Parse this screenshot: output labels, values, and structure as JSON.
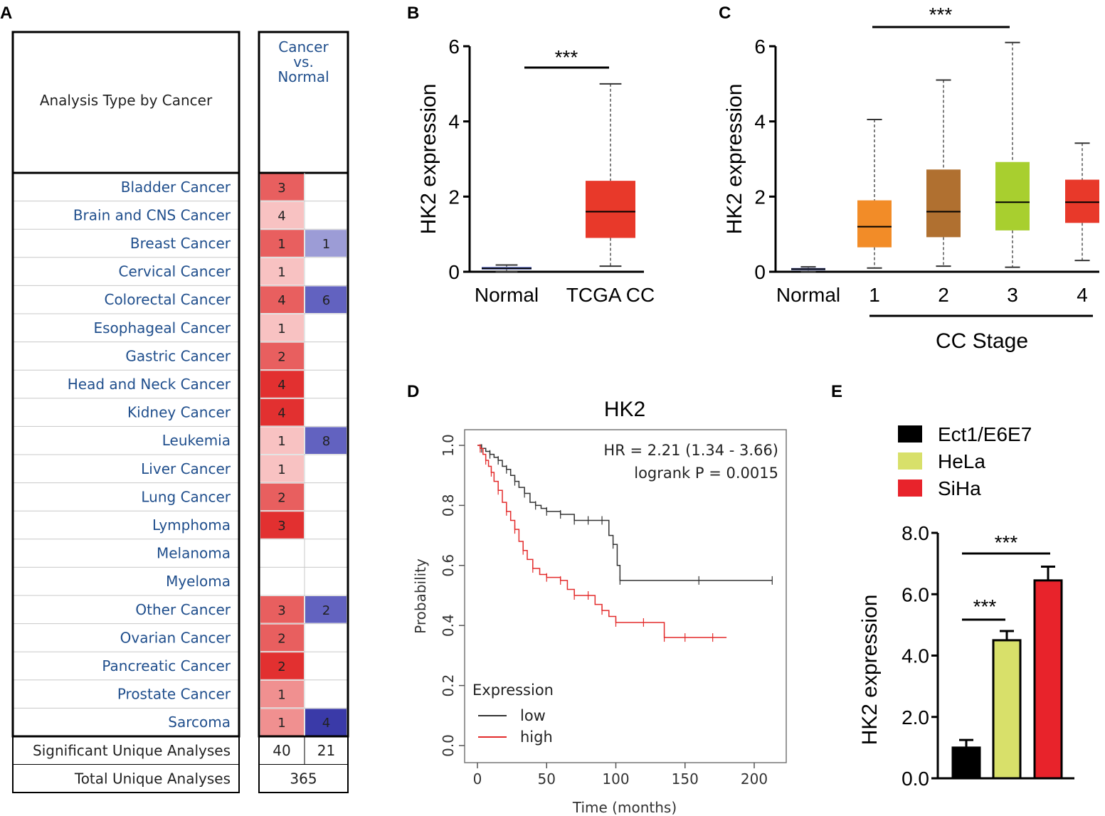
{
  "panels": {
    "A": "A",
    "B": "B",
    "C": "C",
    "D": "D",
    "E": "E"
  },
  "colors": {
    "onco_red": [
      "#f8c2c2",
      "#f09090",
      "#e85f5f",
      "#e23030"
    ],
    "onco_blue": [
      "#9c9cd6",
      "#6262c0",
      "#3a3aa8"
    ],
    "normal_box": "#6f7fd6",
    "tcga_box": "#e8392a",
    "stage_boxes": [
      "#f28c28",
      "#b07030",
      "#a8cf2f",
      "#e8392a"
    ],
    "km_low": "#333333",
    "km_high": "#e32b2b",
    "bar_colors": [
      "#000000",
      "#d8e06a",
      "#e8232b"
    ]
  },
  "chart_data": [
    {
      "type": "table",
      "panel": "A",
      "header_left": "Analysis Type by Cancer",
      "header_right_lines": [
        "Cancer",
        "vs.",
        "Normal"
      ],
      "rows": [
        {
          "name": "Bladder Cancer",
          "up": 3,
          "up_level": 2,
          "down": null,
          "down_level": 0
        },
        {
          "name": "Brain and CNS Cancer",
          "up": 4,
          "up_level": 0,
          "down": null,
          "down_level": 0
        },
        {
          "name": "Breast Cancer",
          "up": 1,
          "up_level": 2,
          "down": 1,
          "down_level": 1
        },
        {
          "name": "Cervical Cancer",
          "up": 1,
          "up_level": 0,
          "down": null,
          "down_level": 0
        },
        {
          "name": "Colorectal Cancer",
          "up": 4,
          "up_level": 2,
          "down": 6,
          "down_level": 2
        },
        {
          "name": "Esophageal Cancer",
          "up": 1,
          "up_level": 0,
          "down": null,
          "down_level": 0
        },
        {
          "name": "Gastric Cancer",
          "up": 2,
          "up_level": 2,
          "down": null,
          "down_level": 0
        },
        {
          "name": "Head and Neck Cancer",
          "up": 4,
          "up_level": 3,
          "down": null,
          "down_level": 0
        },
        {
          "name": "Kidney Cancer",
          "up": 4,
          "up_level": 3,
          "down": null,
          "down_level": 0
        },
        {
          "name": "Leukemia",
          "up": 1,
          "up_level": 0,
          "down": 8,
          "down_level": 2
        },
        {
          "name": "Liver Cancer",
          "up": 1,
          "up_level": 0,
          "down": null,
          "down_level": 0
        },
        {
          "name": "Lung Cancer",
          "up": 2,
          "up_level": 2,
          "down": null,
          "down_level": 0
        },
        {
          "name": "Lymphoma",
          "up": 3,
          "up_level": 3,
          "down": null,
          "down_level": 0
        },
        {
          "name": "Melanoma",
          "up": null,
          "up_level": 0,
          "down": null,
          "down_level": 0
        },
        {
          "name": "Myeloma",
          "up": null,
          "up_level": 0,
          "down": null,
          "down_level": 0
        },
        {
          "name": "Other Cancer",
          "up": 3,
          "up_level": 2,
          "down": 2,
          "down_level": 2
        },
        {
          "name": "Ovarian Cancer",
          "up": 2,
          "up_level": 2,
          "down": null,
          "down_level": 0
        },
        {
          "name": "Pancreatic Cancer",
          "up": 2,
          "up_level": 3,
          "down": null,
          "down_level": 0
        },
        {
          "name": "Prostate Cancer",
          "up": 1,
          "up_level": 1,
          "down": null,
          "down_level": 0
        },
        {
          "name": "Sarcoma",
          "up": 1,
          "up_level": 1,
          "down": 4,
          "down_level": 3
        }
      ],
      "significant_label": "Significant Unique Analyses",
      "significant_up": 40,
      "significant_down": 21,
      "total_label": "Total Unique Analyses",
      "total": 365
    },
    {
      "type": "box",
      "panel": "B",
      "ylabel": "HK2 expression",
      "ylim": [
        0,
        6
      ],
      "yticks": [
        "0",
        "2",
        "4",
        "6"
      ],
      "categories": [
        "Normal",
        "TCGA CC"
      ],
      "boxes": [
        {
          "min": 0.0,
          "q1": 0.06,
          "median": 0.09,
          "q3": 0.13,
          "max": 0.18
        },
        {
          "min": 0.15,
          "q1": 0.9,
          "median": 1.6,
          "q3": 2.42,
          "max": 5.0
        }
      ],
      "significance": "***"
    },
    {
      "type": "box",
      "panel": "C",
      "ylabel": "HK2 expression",
      "xlabel": "CC Stage",
      "ylim": [
        0,
        6
      ],
      "yticks": [
        "0",
        "2",
        "4",
        "6"
      ],
      "categories": [
        "Normal",
        "1",
        "2",
        "3",
        "4"
      ],
      "boxes": [
        {
          "min": 0.0,
          "q1": 0.04,
          "median": 0.07,
          "q3": 0.1,
          "max": 0.13
        },
        {
          "min": 0.1,
          "q1": 0.65,
          "median": 1.2,
          "q3": 1.9,
          "max": 4.05
        },
        {
          "min": 0.15,
          "q1": 0.92,
          "median": 1.6,
          "q3": 2.72,
          "max": 5.1
        },
        {
          "min": 0.12,
          "q1": 1.1,
          "median": 1.85,
          "q3": 2.92,
          "max": 6.1
        },
        {
          "min": 0.3,
          "q1": 1.3,
          "median": 1.85,
          "q3": 2.45,
          "max": 3.42
        }
      ],
      "significance": "***"
    },
    {
      "type": "line",
      "panel": "D",
      "title": "HK2",
      "xlabel": "Time (months)",
      "ylabel": "Probability",
      "xlim": [
        0,
        215
      ],
      "ylim": [
        0,
        1.0
      ],
      "xticks": [
        "0",
        "50",
        "100",
        "150",
        "200"
      ],
      "yticks": [
        "0.0",
        "0.2",
        "0.4",
        "0.6",
        "0.8",
        "1.0"
      ],
      "hr_text": "HR = 2.21 (1.34 - 3.66)",
      "p_text": "logrank P = 0.0015",
      "legend_title": "Expression",
      "series": [
        {
          "name": "low",
          "x": [
            0,
            3,
            6,
            9,
            12,
            15,
            18,
            21,
            24,
            27,
            30,
            34,
            38,
            42,
            46,
            50,
            55,
            60,
            65,
            70,
            75,
            80,
            85,
            90,
            95,
            98,
            101,
            103,
            130,
            160,
            190,
            213
          ],
          "y": [
            1.0,
            0.99,
            0.98,
            0.97,
            0.96,
            0.95,
            0.93,
            0.92,
            0.9,
            0.88,
            0.86,
            0.84,
            0.81,
            0.8,
            0.79,
            0.78,
            0.78,
            0.77,
            0.77,
            0.75,
            0.75,
            0.75,
            0.75,
            0.75,
            0.7,
            0.67,
            0.6,
            0.55,
            0.55,
            0.55,
            0.55,
            0.55
          ]
        },
        {
          "name": "high",
          "x": [
            0,
            2,
            4,
            6,
            8,
            10,
            12,
            15,
            18,
            21,
            24,
            27,
            30,
            33,
            36,
            40,
            45,
            50,
            55,
            60,
            65,
            70,
            75,
            80,
            85,
            90,
            95,
            100,
            110,
            120,
            130,
            135,
            140,
            150,
            160,
            170,
            180
          ],
          "y": [
            1.0,
            0.99,
            0.97,
            0.95,
            0.93,
            0.91,
            0.88,
            0.85,
            0.81,
            0.78,
            0.75,
            0.72,
            0.68,
            0.65,
            0.62,
            0.59,
            0.57,
            0.56,
            0.56,
            0.55,
            0.52,
            0.5,
            0.5,
            0.5,
            0.47,
            0.45,
            0.43,
            0.41,
            0.41,
            0.41,
            0.41,
            0.36,
            0.36,
            0.36,
            0.36,
            0.36,
            0.36
          ]
        }
      ]
    },
    {
      "type": "bar",
      "panel": "E",
      "ylabel": "HK2 expression",
      "ylim": [
        0,
        8
      ],
      "yticks": [
        "0.0",
        "2.0",
        "4.0",
        "6.0",
        "8.0"
      ],
      "categories": [
        "Ect1/E6E7",
        "HeLa",
        "SiHa"
      ],
      "values": [
        1.0,
        4.5,
        6.45
      ],
      "errors": [
        0.25,
        0.3,
        0.45
      ],
      "significance": [
        "***",
        "***"
      ]
    }
  ]
}
